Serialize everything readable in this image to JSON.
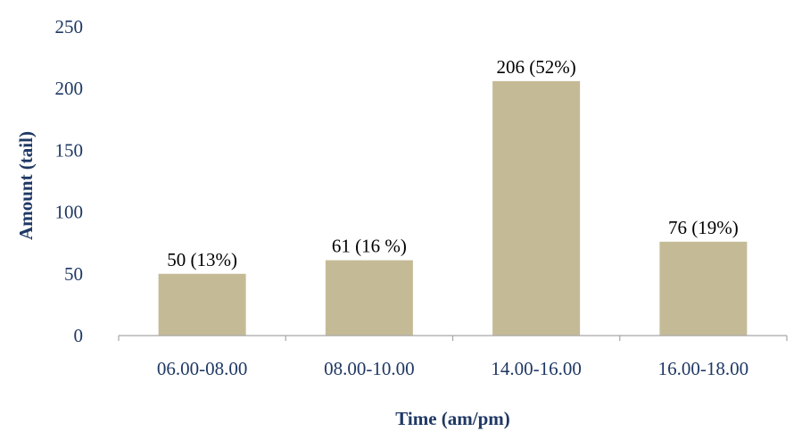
{
  "chart_data": {
    "type": "bar",
    "title": "",
    "xlabel": "Time (am/pm)",
    "ylabel": "Amount (tail)",
    "categories": [
      "06.00-08.00",
      "08.00-10.00",
      "14.00-16.00",
      "16.00-18.00"
    ],
    "values": [
      50,
      61,
      206,
      76
    ],
    "data_labels": [
      "50 (13%)",
      "61 (16 %)",
      "206 (52%)",
      "76 (19%)"
    ],
    "ylim": [
      0,
      250
    ],
    "yticks": [
      0,
      50,
      100,
      150,
      200,
      250
    ],
    "grid": false,
    "legend": "none",
    "bar_color": "#c4bb96",
    "text_color": "#1f3864",
    "axis_color": "#a6a6a6"
  }
}
